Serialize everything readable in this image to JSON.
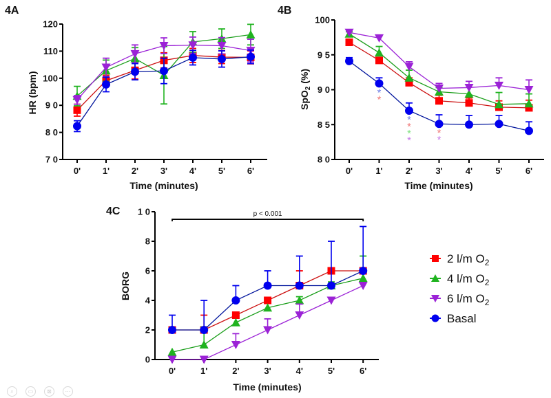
{
  "series_meta": [
    {
      "key": "o2_2",
      "name": "2 l/m O2",
      "label_main": "2 l/m O",
      "label_sub": "2",
      "color": "#ff0000",
      "line_color": "#cc1010",
      "marker": "square"
    },
    {
      "key": "o2_4",
      "name": "4 l/m O2",
      "label_main": "4 l/m O",
      "label_sub": "2",
      "color": "#1fb31f",
      "line_color": "#1a9e1a",
      "marker": "triangle-up"
    },
    {
      "key": "o2_6",
      "name": "6 l/m O2",
      "label_main": "6 l/m O",
      "label_sub": "2",
      "color": "#9b22d6",
      "line_color": "#9b22d6",
      "marker": "triangle-down"
    },
    {
      "key": "basal",
      "name": "Basal",
      "label_main": "Basal",
      "label_sub": "",
      "color": "#0000ee",
      "line_color": "#00149c",
      "marker": "circle"
    }
  ],
  "chart_data": [
    {
      "id": "4A",
      "panel_label": "4A",
      "type": "line",
      "title": "",
      "xlabel": "Time (minutes)",
      "ylabel": "HR (bpm)",
      "categories": [
        "0'",
        "1'",
        "2'",
        "3'",
        "4'",
        "5'",
        "6'"
      ],
      "ylim": [
        70,
        120
      ],
      "yticks": [
        70,
        80,
        90,
        100,
        110,
        120
      ],
      "ytick_labels": [
        "7 0",
        "8 0",
        "9 0",
        "100",
        "110",
        "120"
      ],
      "error_mode": "both",
      "series": [
        {
          "key": "o2_2",
          "values": [
            88.2,
            99.1,
            102.9,
            106.6,
            108.4,
            107.8,
            107.7
          ],
          "err": [
            2.2,
            2.0,
            3.2,
            2.8,
            2.6,
            2.4,
            2.4
          ]
        },
        {
          "key": "o2_4",
          "values": [
            93.4,
            102.8,
            107.3,
            101.1,
            113.4,
            114.6,
            116.1
          ],
          "err": [
            3.6,
            3.9,
            4.0,
            10.6,
            3.8,
            3.6,
            3.8
          ]
        },
        {
          "key": "o2_6",
          "values": [
            92.0,
            104.0,
            109.0,
            112.0,
            112.2,
            112.0,
            110.2
          ],
          "err": [
            1.6,
            3.4,
            3.3,
            2.9,
            3.0,
            3.0,
            4.2
          ]
        },
        {
          "key": "basal",
          "values": [
            82.3,
            97.7,
            102.4,
            102.7,
            107.6,
            107.1,
            107.9
          ],
          "err": [
            2.0,
            2.7,
            3.0,
            4.7,
            2.7,
            3.0,
            2.5
          ]
        }
      ],
      "annotations": []
    },
    {
      "id": "4B",
      "panel_label": "4B",
      "type": "line",
      "title": "",
      "xlabel": "Time (minutes)",
      "ylabel_main": "SpO",
      "ylabel_sub": "2",
      "ylabel_tail": " (%)",
      "ylabel": "SpO2 (%)",
      "categories": [
        "0'",
        "1'",
        "2'",
        "3'",
        "4'",
        "5'",
        "6'"
      ],
      "ylim": [
        80,
        100
      ],
      "yticks": [
        80,
        85,
        90,
        95,
        100
      ],
      "ytick_labels": [
        "8 0",
        "8 5",
        "9 0",
        "9 5",
        "100"
      ],
      "error_mode": "up",
      "series": [
        {
          "key": "o2_2",
          "values": [
            96.8,
            94.2,
            91.0,
            88.4,
            88.1,
            87.5,
            87.4
          ],
          "err": [
            0.3,
            0.4,
            0.7,
            0.8,
            0.7,
            0.9,
            1.1
          ]
        },
        {
          "key": "o2_4",
          "values": [
            98.0,
            95.3,
            91.7,
            89.7,
            89.4,
            87.9,
            88.0
          ],
          "err": [
            0.3,
            0.9,
            1.1,
            0.6,
            1.3,
            1.7,
            1.4
          ]
        },
        {
          "key": "o2_6",
          "values": [
            98.2,
            97.4,
            93.3,
            90.2,
            90.3,
            90.6,
            90.0
          ],
          "err": [
            0.3,
            0.3,
            0.7,
            0.7,
            0.9,
            1.1,
            1.4
          ]
        },
        {
          "key": "basal",
          "values": [
            94.1,
            90.9,
            87.0,
            85.1,
            85.0,
            85.1,
            84.1
          ],
          "err": [
            0.5,
            0.8,
            1.1,
            1.3,
            1.3,
            1.2,
            1.3
          ]
        }
      ],
      "annotations": [
        {
          "type": "significance",
          "x_index": 1,
          "symbol": "*",
          "colors": [
            "#6f7fe6",
            "#f07878"
          ]
        },
        {
          "type": "significance",
          "x_index": 2,
          "symbol": "*",
          "colors": [
            "#6f7fe6",
            "#f07878",
            "#7fe07f",
            "#c67ae8"
          ]
        },
        {
          "type": "significance",
          "x_index": 3,
          "symbol": "*",
          "colors": [
            "#f07878",
            "#c67ae8"
          ]
        }
      ]
    },
    {
      "id": "4C",
      "panel_label": "4C",
      "type": "line",
      "title": "",
      "xlabel": "Time (minutes)",
      "ylabel": "BORG",
      "categories": [
        "0'",
        "1'",
        "2'",
        "3'",
        "4'",
        "5'",
        "6'"
      ],
      "ylim": [
        0,
        10
      ],
      "yticks": [
        0,
        2,
        4,
        6,
        8,
        10
      ],
      "ytick_labels": [
        "0",
        "2",
        "4",
        "6",
        "8",
        "1 0"
      ],
      "error_mode": "up",
      "series": [
        {
          "key": "o2_2",
          "values": [
            2,
            2,
            3,
            4,
            5,
            6,
            6
          ],
          "err": [
            0,
            1,
            0,
            0,
            1,
            0,
            0
          ]
        },
        {
          "key": "o2_4",
          "values": [
            0.5,
            1,
            2.5,
            3.5,
            4,
            5,
            5.5
          ],
          "err": [
            0,
            1.2,
            0,
            0,
            0.25,
            0.25,
            1.5
          ]
        },
        {
          "key": "o2_6",
          "values": [
            0,
            0,
            1,
            2,
            3,
            4,
            5
          ],
          "err": [
            0,
            0,
            0.75,
            0.75,
            0.75,
            0,
            0
          ]
        },
        {
          "key": "basal",
          "values": [
            2,
            2,
            4,
            5,
            5,
            5,
            6
          ],
          "err": [
            1,
            2,
            1,
            1,
            2,
            3,
            3
          ]
        }
      ],
      "annotations": [
        {
          "type": "bracket",
          "from_index": 0,
          "to_index": 6,
          "y_value": 9.3,
          "text": "p < 0.001"
        }
      ],
      "legend_position": "right"
    }
  ],
  "toolbar": {
    "buttons": [
      {
        "name": "zoom-button",
        "icon": "search-icon",
        "glyph": "⌕"
      },
      {
        "name": "caption-button",
        "icon": "caption-icon",
        "glyph": "▭"
      },
      {
        "name": "fullscreen-button",
        "icon": "no-video-icon",
        "glyph": "⊠"
      },
      {
        "name": "more-button",
        "icon": "more-icon",
        "glyph": "⋯"
      }
    ]
  }
}
